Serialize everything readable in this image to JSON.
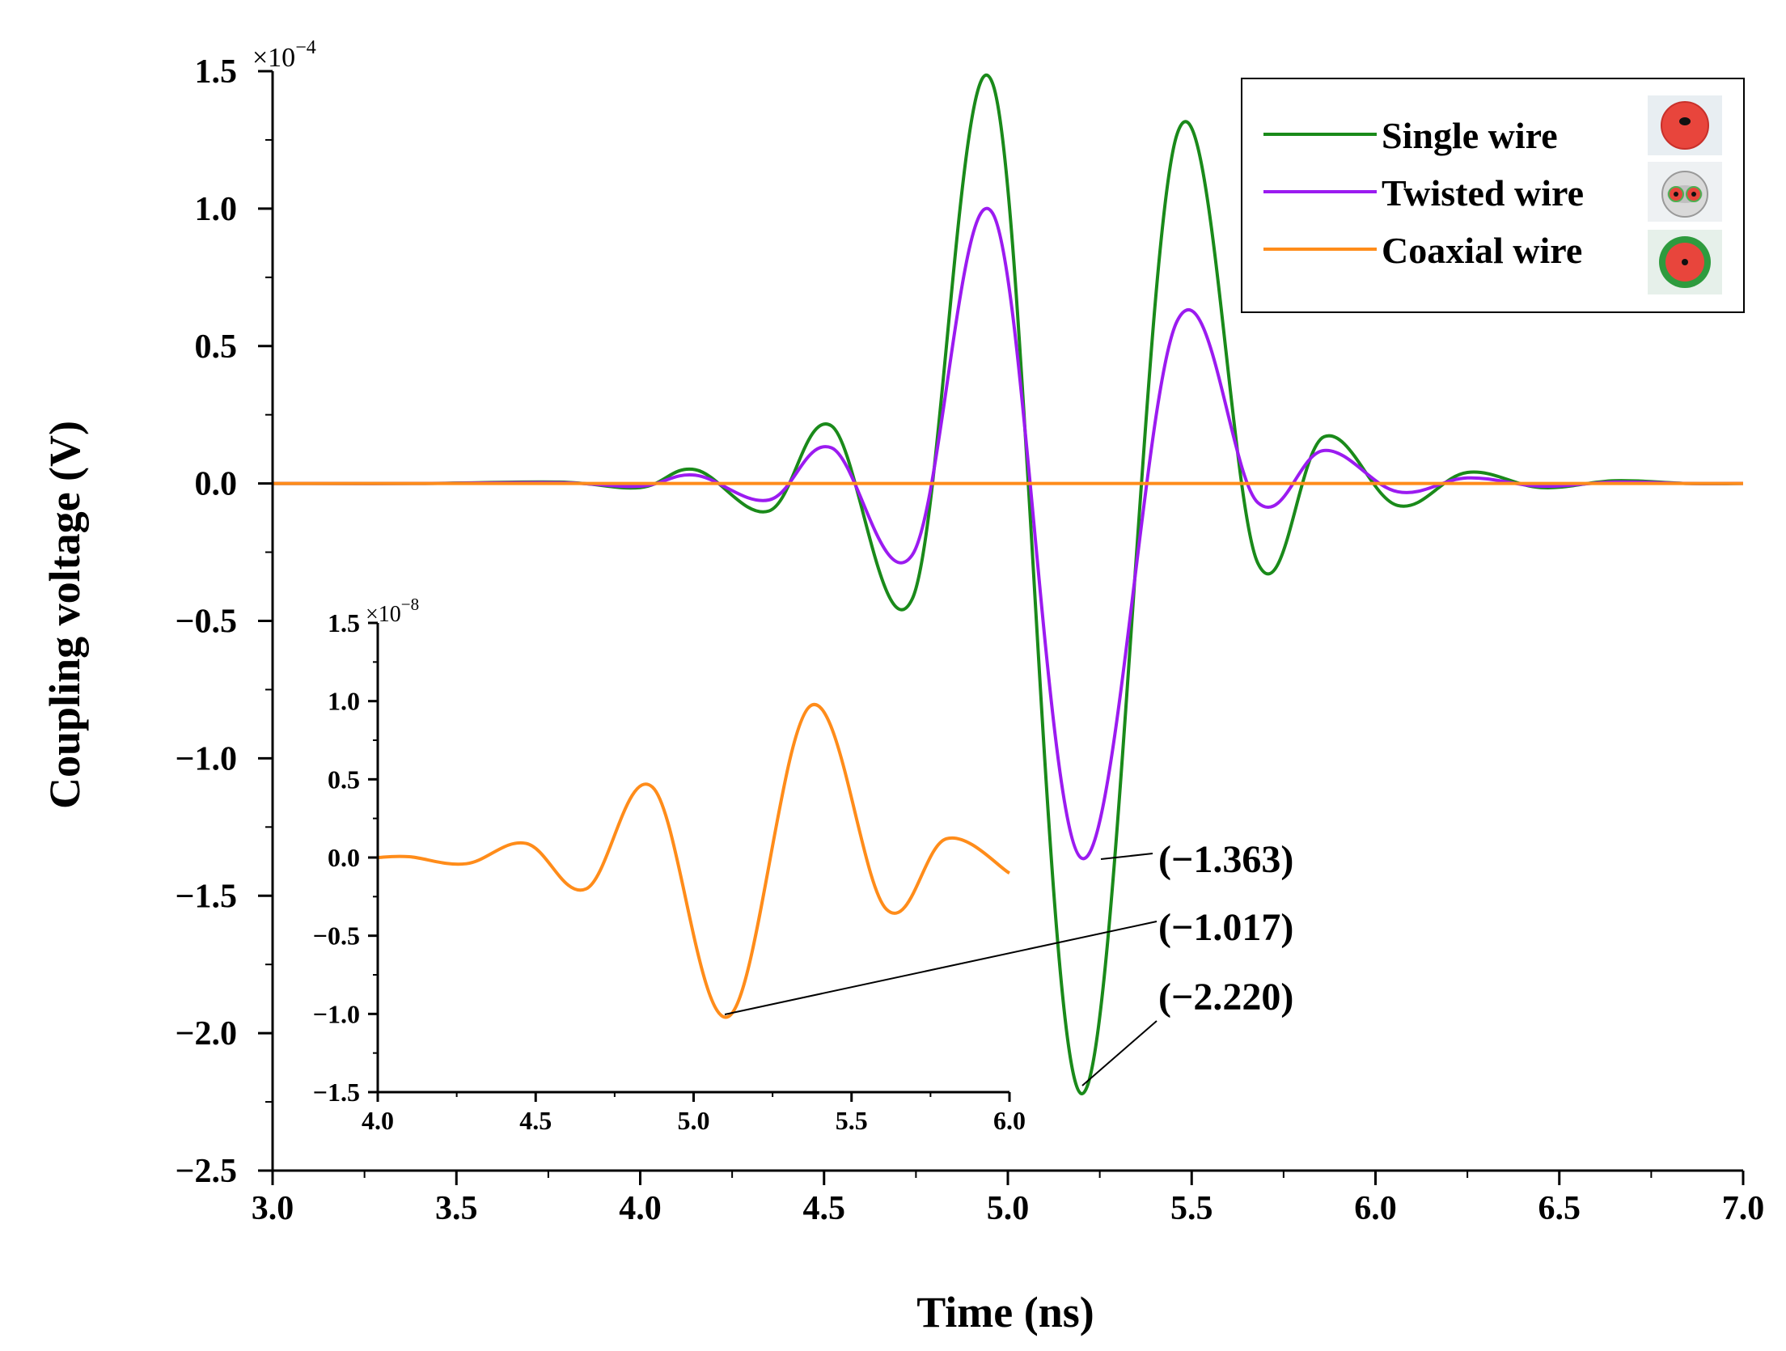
{
  "chart_data": [
    {
      "type": "line",
      "panel": "main",
      "title": "",
      "xlabel": "Time (ns)",
      "ylabel": "Coupling voltage (V)",
      "xlim": [
        3.0,
        7.0
      ],
      "ylim": [
        -2.5,
        1.5
      ],
      "y_scale_label": "×10",
      "y_scale_exponent": "−4",
      "x_ticks": [
        "3.0",
        "3.5",
        "4.0",
        "4.5",
        "5.0",
        "5.5",
        "6.0",
        "6.5",
        "7.0"
      ],
      "y_ticks": [
        "1.5",
        "1.0",
        "0.5",
        "0.0",
        "−0.5",
        "−1.0",
        "−1.5",
        "−2.0",
        "−2.5"
      ],
      "legend_position": "top-right",
      "series": [
        {
          "name": "Single wire",
          "color": "#1a8a1a",
          "x": [
            3.0,
            3.4,
            3.78,
            4.0,
            4.15,
            4.35,
            4.52,
            4.74,
            4.96,
            5.2,
            5.46,
            5.68,
            5.86,
            6.06,
            6.25,
            6.45,
            6.65,
            6.85,
            7.0
          ],
          "y": [
            0.0,
            0.0,
            0.005,
            -0.015,
            0.05,
            -0.1,
            0.21,
            -0.42,
            1.45,
            -2.22,
            1.27,
            -0.29,
            0.17,
            -0.08,
            0.04,
            -0.015,
            0.01,
            0.0,
            0.0
          ]
        },
        {
          "name": "Twisted wire",
          "color": "#9b1bf0",
          "x": [
            3.0,
            3.4,
            3.78,
            4.0,
            4.15,
            4.35,
            4.52,
            4.74,
            4.96,
            5.2,
            5.46,
            5.68,
            5.86,
            6.06,
            6.25,
            6.45,
            6.65,
            6.85,
            7.0
          ],
          "y": [
            0.0,
            0.0,
            0.003,
            -0.01,
            0.03,
            -0.06,
            0.13,
            -0.26,
            0.98,
            -1.363,
            0.59,
            -0.07,
            0.12,
            -0.03,
            0.02,
            -0.01,
            0.005,
            0.0,
            0.0
          ]
        },
        {
          "name": "Coaxial wire",
          "color": "#ff8c1a",
          "x": [
            3.0,
            7.0
          ],
          "y": [
            0.0,
            0.0
          ]
        }
      ],
      "legend_icons": [
        "single-wire-cross-section-icon",
        "twisted-wire-cross-section-icon",
        "coaxial-wire-cross-section-icon"
      ],
      "annotations": [
        "(−1.363)",
        "(−1.017)",
        "(−2.220)"
      ]
    },
    {
      "type": "line",
      "panel": "inset",
      "title": "",
      "xlabel": "",
      "ylabel": "",
      "xlim": [
        4.0,
        6.0
      ],
      "ylim": [
        -1.5,
        1.5
      ],
      "y_scale_label": "×10",
      "y_scale_exponent": "−8",
      "x_ticks": [
        "4.0",
        "4.5",
        "5.0",
        "5.5",
        "6.0"
      ],
      "y_ticks": [
        "1.5",
        "1.0",
        "0.5",
        "0.0",
        "−0.5",
        "−1.0",
        "−1.5"
      ],
      "series": [
        {
          "name": "Coaxial wire",
          "color": "#ff8c1a",
          "x": [
            4.0,
            4.1,
            4.28,
            4.47,
            4.66,
            4.87,
            5.11,
            5.37,
            5.61,
            5.8,
            6.0
          ],
          "y": [
            0.0,
            0.005,
            -0.04,
            0.09,
            -0.2,
            0.45,
            -1.017,
            0.97,
            -0.33,
            0.12,
            -0.1
          ]
        }
      ]
    }
  ]
}
